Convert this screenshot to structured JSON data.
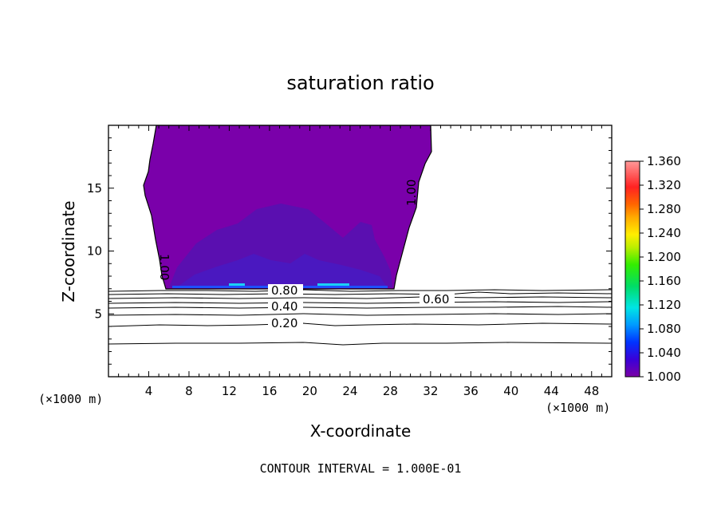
{
  "chart_data": {
    "type": "heatmap",
    "title": "saturation ratio",
    "xlabel": "X-coordinate",
    "ylabel": "Z-coordinate",
    "x_unit": "(×1000 m)",
    "z_unit": "(×1000 m)",
    "xlim": [
      0,
      50
    ],
    "ylim": [
      0,
      20
    ],
    "x_ticks": [
      "4",
      "8",
      "12",
      "16",
      "20",
      "24",
      "28",
      "32",
      "36",
      "40",
      "44",
      "48"
    ],
    "y_ticks": [
      "5",
      "10",
      "15"
    ],
    "colorbar": {
      "min": 1.0,
      "max": 1.36,
      "labels": [
        "1.360",
        "1.320",
        "1.280",
        "1.240",
        "1.200",
        "1.160",
        "1.120",
        "1.080",
        "1.040",
        "1.000"
      ]
    },
    "contour_labels": [
      "1.00",
      "1.00",
      "0.80",
      "0.60",
      "0.40",
      "0.20"
    ],
    "footer": "CONTOUR INTERVAL = 1.000E-01",
    "fill_color": "#7a00aa",
    "fill_core_color": "#5a0fb0",
    "fill_deep_color": "#4a18c0"
  }
}
